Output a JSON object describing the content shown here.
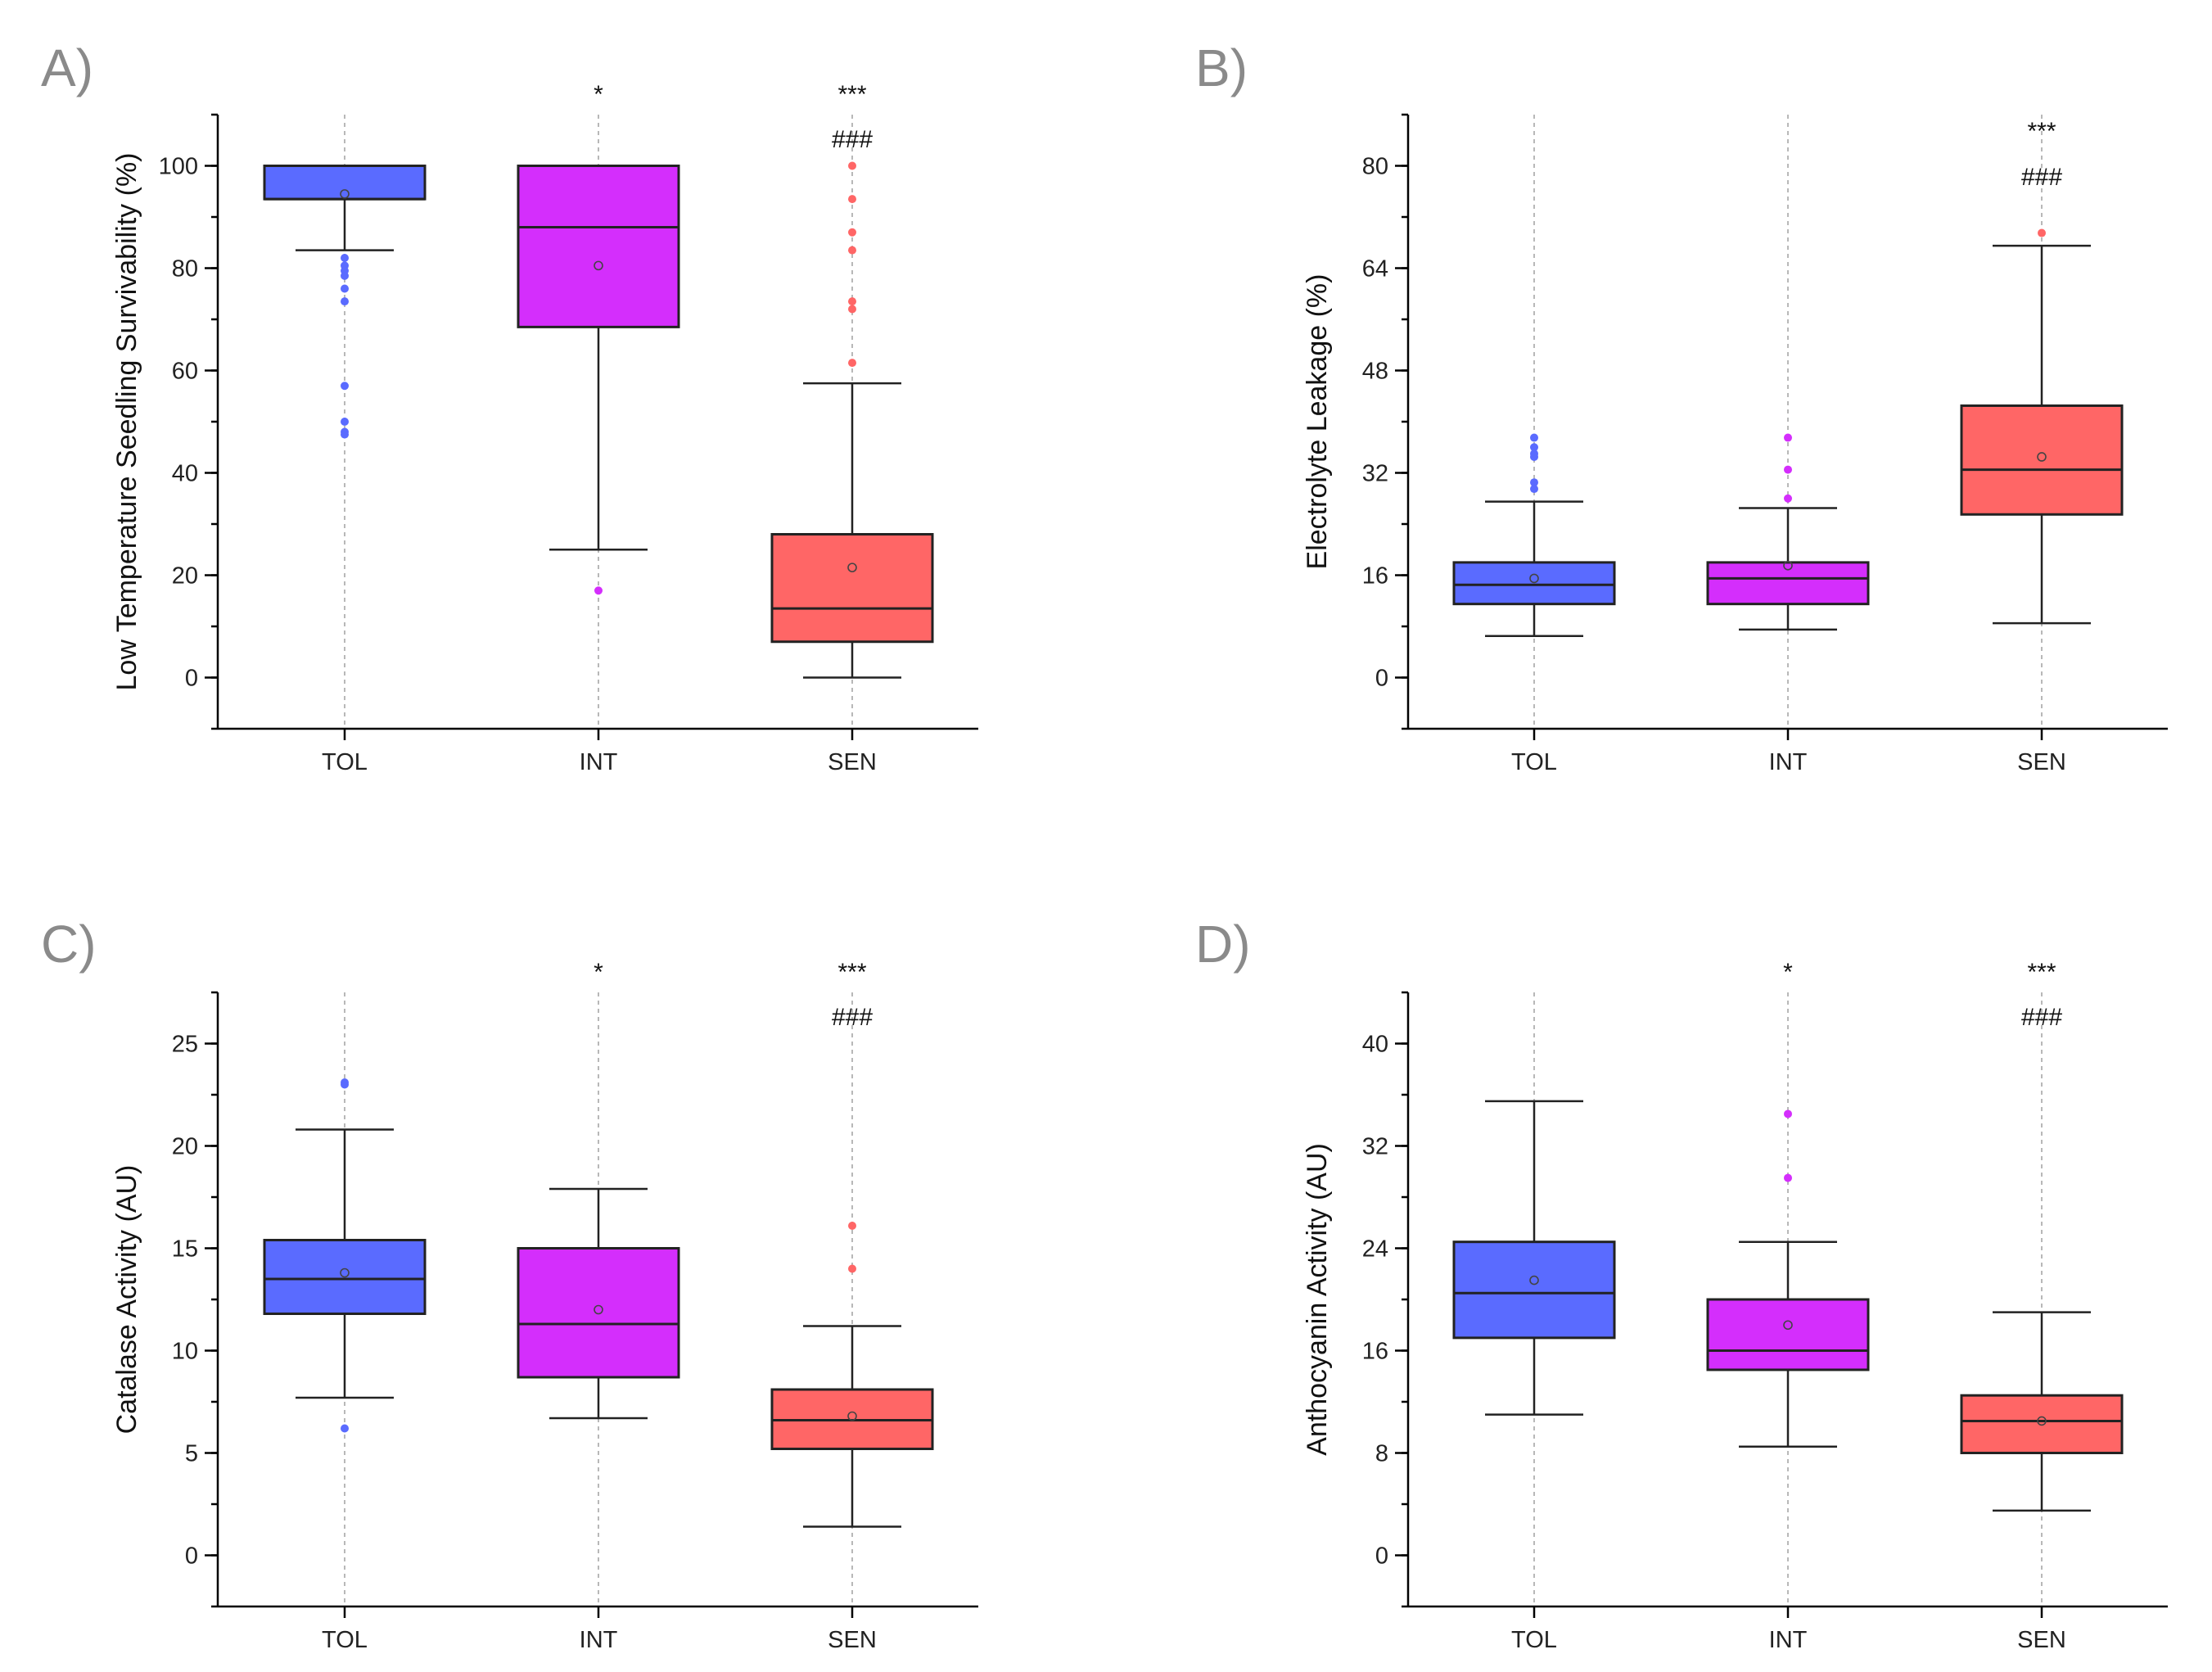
{
  "colors": {
    "TOL": "#5a6bff",
    "INT": "#d42efc",
    "SEN": "#ff6666"
  },
  "chart_data": [
    {
      "type": "box",
      "panel_label": "A)",
      "title": "",
      "xlabel": "",
      "ylabel": "Low Temperature Seedling Survivability (%)",
      "categories": [
        "TOL",
        "INT",
        "SEN"
      ],
      "ylim": [
        -10,
        110
      ],
      "yticks": [
        0,
        20,
        40,
        60,
        80,
        100
      ],
      "minor_step": 10,
      "boxes": [
        {
          "category": "TOL",
          "q1": 93.5,
          "median": 93.5,
          "q3": 100,
          "whisker_low": 83.5,
          "whisker_high": 100,
          "mean": 94.5,
          "outliers": [
            82,
            80.5,
            79.5,
            78.5,
            76,
            73.5,
            57,
            50,
            48,
            47.5
          ],
          "annotation": ""
        },
        {
          "category": "INT",
          "q1": 68.5,
          "median": 88,
          "q3": 100,
          "whisker_low": 25,
          "whisker_high": 100,
          "mean": 80.5,
          "outliers": [
            17
          ],
          "annotation": "*"
        },
        {
          "category": "SEN",
          "q1": 7,
          "median": 13.5,
          "q3": 28,
          "whisker_low": 0,
          "whisker_high": 57.5,
          "mean": 21.5,
          "outliers": [
            61.5,
            72,
            73.5,
            83.5,
            87,
            93.5,
            100
          ],
          "annotation": "***",
          "annotation2": "###"
        }
      ]
    },
    {
      "type": "box",
      "panel_label": "B)",
      "title": "",
      "xlabel": "",
      "ylabel": "Electrolyte Leakage (%)",
      "categories": [
        "TOL",
        "INT",
        "SEN"
      ],
      "ylim": [
        -8,
        88
      ],
      "yticks": [
        0,
        16,
        32,
        48,
        64,
        80
      ],
      "minor_step": 8,
      "boxes": [
        {
          "category": "TOL",
          "q1": 11.5,
          "median": 14.5,
          "q3": 18,
          "whisker_low": 6.5,
          "whisker_high": 27.5,
          "mean": 15.5,
          "outliers": [
            29.5,
            30.5,
            34.5,
            35,
            36,
            37.5
          ],
          "annotation": ""
        },
        {
          "category": "INT",
          "q1": 11.5,
          "median": 15.5,
          "q3": 18,
          "whisker_low": 7.5,
          "whisker_high": 26.5,
          "mean": 17.5,
          "outliers": [
            28,
            32.5,
            37.5
          ],
          "annotation": ""
        },
        {
          "category": "SEN",
          "q1": 25.5,
          "median": 32.5,
          "q3": 42.5,
          "whisker_low": 8.5,
          "whisker_high": 67.5,
          "mean": 34.5,
          "outliers": [
            69.5
          ],
          "annotation": "***",
          "annotation2": "###"
        }
      ]
    },
    {
      "type": "box",
      "panel_label": "C)",
      "title": "",
      "xlabel": "",
      "ylabel": "Catalase Activity (AU)",
      "categories": [
        "TOL",
        "INT",
        "SEN"
      ],
      "ylim": [
        -2.5,
        27.5
      ],
      "yticks": [
        0,
        5,
        10,
        15,
        20,
        25
      ],
      "minor_step": 2.5,
      "boxes": [
        {
          "category": "TOL",
          "q1": 11.8,
          "median": 13.5,
          "q3": 15.4,
          "whisker_low": 7.7,
          "whisker_high": 20.8,
          "mean": 13.8,
          "outliers": [
            6.2,
            23,
            23.1
          ],
          "annotation": ""
        },
        {
          "category": "INT",
          "q1": 8.7,
          "median": 11.3,
          "q3": 15,
          "whisker_low": 6.7,
          "whisker_high": 17.9,
          "mean": 12,
          "outliers": [],
          "annotation": "*"
        },
        {
          "category": "SEN",
          "q1": 5.2,
          "median": 6.6,
          "q3": 8.1,
          "whisker_low": 1.4,
          "whisker_high": 11.2,
          "mean": 6.8,
          "outliers": [
            14,
            16.1
          ],
          "annotation": "***",
          "annotation2": "###"
        }
      ]
    },
    {
      "type": "box",
      "panel_label": "D)",
      "title": "",
      "xlabel": "",
      "ylabel": "Anthocyanin Activity (AU)",
      "categories": [
        "TOL",
        "INT",
        "SEN"
      ],
      "ylim": [
        -4,
        44
      ],
      "yticks": [
        0,
        8,
        16,
        24,
        32,
        40
      ],
      "minor_step": 4,
      "boxes": [
        {
          "category": "TOL",
          "q1": 17,
          "median": 20.5,
          "q3": 24.5,
          "whisker_low": 11,
          "whisker_high": 35.5,
          "mean": 21.5,
          "outliers": [],
          "annotation": ""
        },
        {
          "category": "INT",
          "q1": 14.5,
          "median": 16,
          "q3": 20,
          "whisker_low": 8.5,
          "whisker_high": 24.5,
          "mean": 18,
          "outliers": [
            29.5,
            34.5
          ],
          "annotation": "*"
        },
        {
          "category": "SEN",
          "q1": 8,
          "median": 10.5,
          "q3": 12.5,
          "whisker_low": 3.5,
          "whisker_high": 19,
          "mean": 10.5,
          "outliers": [],
          "annotation": "***",
          "annotation2": "###"
        }
      ]
    }
  ]
}
